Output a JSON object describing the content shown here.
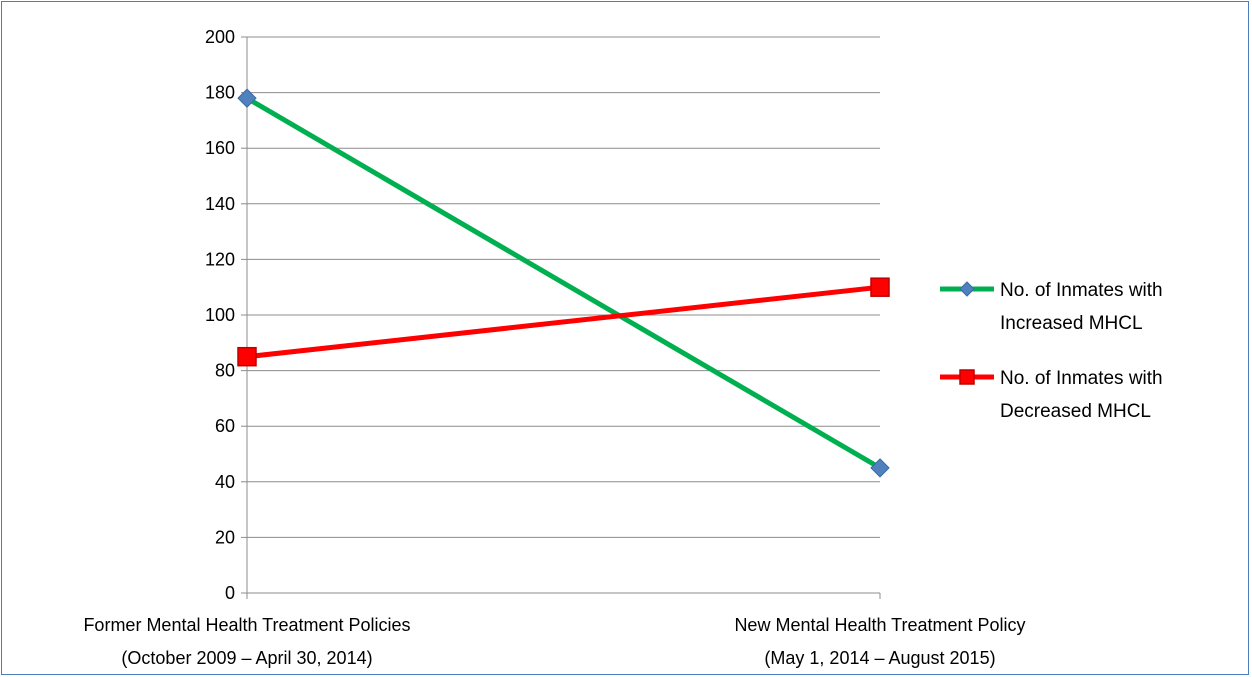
{
  "chart_data": {
    "type": "line",
    "categories": [
      [
        "Former Mental Health Treatment Policies",
        "(October 2009 – April 30, 2014)"
      ],
      [
        "New Mental Health Treatment Policy",
        "(May 1, 2014 – August 2015)"
      ]
    ],
    "series": [
      {
        "name_lines": [
          "No. of Inmates with",
          "Increased MHCL"
        ],
        "values": [
          178,
          45
        ],
        "color": "#00b050",
        "marker": "diamond",
        "marker_color": "#4f81bd"
      },
      {
        "name_lines": [
          "No. of Inmates with",
          "Decreased MHCL"
        ],
        "values": [
          85,
          110
        ],
        "color": "#ff0000",
        "marker": "square",
        "marker_color": "#ff0000"
      }
    ],
    "ylim": [
      0,
      200
    ],
    "yticks": [
      0,
      20,
      40,
      60,
      80,
      100,
      120,
      140,
      160,
      180,
      200
    ],
    "grid": true,
    "legend": "right"
  }
}
